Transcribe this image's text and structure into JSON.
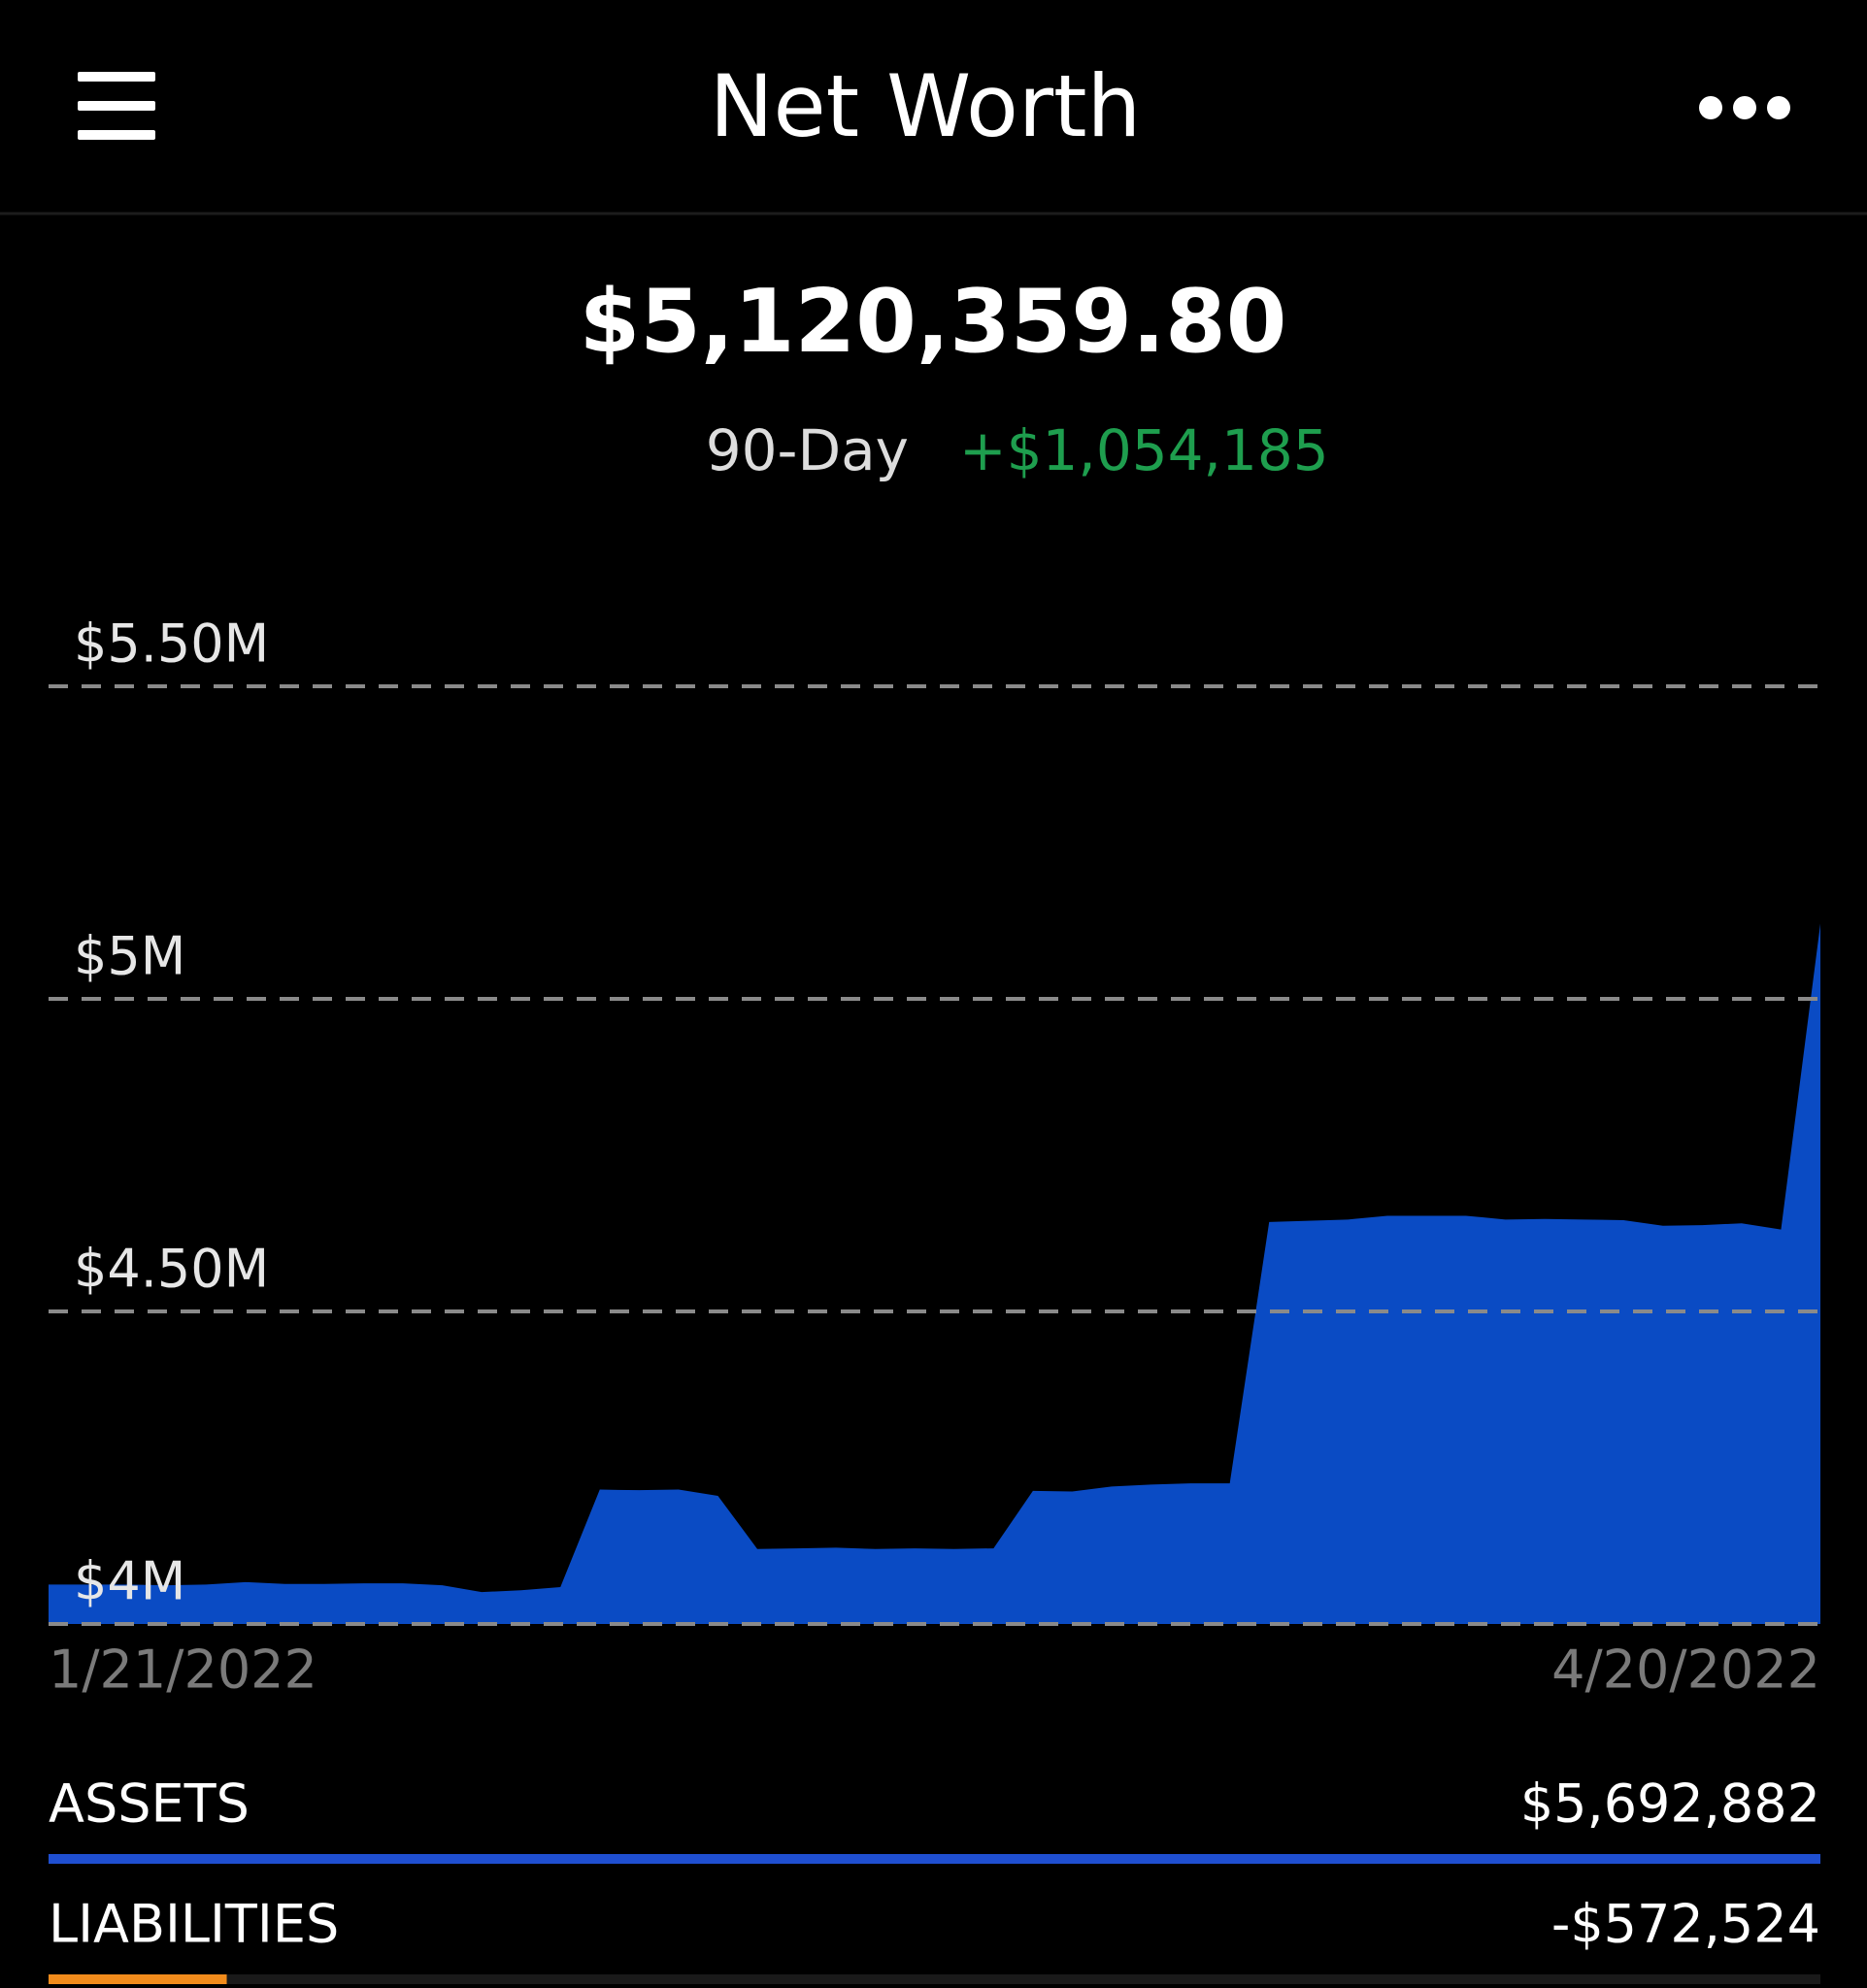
{
  "header": {
    "title": "Net Worth"
  },
  "summary": {
    "net_worth": "$5,120,359.80",
    "period": "90-Day",
    "change": "+$1,054,185"
  },
  "chart_data": {
    "type": "area",
    "categories": [
      "1/21/2022",
      null,
      null,
      null,
      null,
      null,
      null,
      null,
      null,
      null,
      null,
      null,
      null,
      null,
      null,
      null,
      null,
      null,
      null,
      null,
      null,
      null,
      null,
      null,
      null,
      null,
      null,
      null,
      null,
      null,
      null,
      null,
      null,
      null,
      null,
      null,
      null,
      null,
      null,
      null,
      null,
      null,
      null,
      null,
      null,
      "4/20/2022"
    ],
    "values": [
      4063000,
      4063000,
      4063000,
      4062000,
      4063000,
      4067000,
      4064000,
      4064000,
      4065000,
      4065000,
      4062000,
      4051000,
      4054000,
      4059000,
      4215000,
      4214000,
      4215000,
      4205000,
      4120000,
      4121000,
      4122000,
      4120000,
      4121000,
      4120000,
      4121000,
      4213000,
      4212000,
      4220000,
      4223000,
      4225000,
      4225000,
      4643000,
      4645000,
      4647000,
      4653000,
      4653000,
      4653000,
      4647000,
      4648000,
      4647000,
      4646000,
      4637000,
      4638000,
      4641000,
      4631000,
      5120360
    ],
    "color": "#0a4bc4",
    "ylim": [
      4000000,
      5500000
    ],
    "yticks": [
      {
        "value": 4000000,
        "label": "$4M"
      },
      {
        "value": 4500000,
        "label": "$4.50M"
      },
      {
        "value": 5000000,
        "label": "$5M"
      },
      {
        "value": 5500000,
        "label": "$5.50M"
      }
    ],
    "grid": true
  },
  "breakdown": [
    {
      "label": "ASSETS",
      "value": 5692882,
      "value_label": "$5,692,882",
      "color": "#1f4fd1"
    },
    {
      "label": "LIABILITIES",
      "value": -572524,
      "value_label": "-$572,524",
      "color": "#f28c1c"
    }
  ]
}
